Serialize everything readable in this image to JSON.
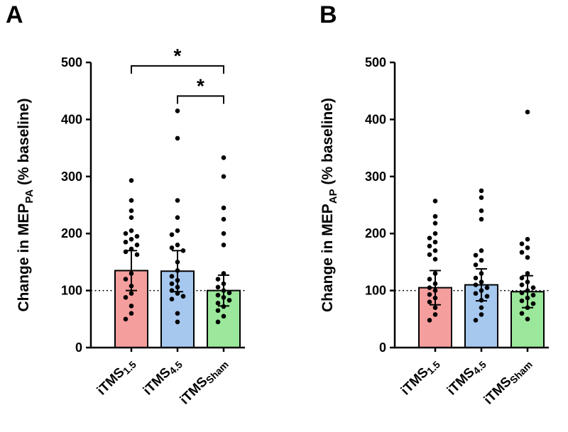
{
  "panels": {
    "a_label": "A",
    "b_label": "B"
  },
  "chart_data": [
    {
      "type": "bar",
      "panel_label": "A",
      "title": "",
      "ylabel_prefix": "Change in MEP",
      "ylabel_sub": "PA",
      "ylabel_suffix": " (% baseline)",
      "ylim": [
        0,
        500
      ],
      "yticks": [
        0,
        100,
        200,
        300,
        400,
        500
      ],
      "reference_line": 100,
      "grid": false,
      "legend": "none",
      "categories": [
        {
          "prefix": "iTMS",
          "sub": "1.5"
        },
        {
          "prefix": "iTMS",
          "sub": "4.5"
        },
        {
          "prefix": "iTMS",
          "sub": "Sham"
        }
      ],
      "bars": [
        {
          "name": "iTMS1.5",
          "mean": 135,
          "sem": 35,
          "color": "#F59E9E",
          "points": [
            293,
            258,
            240,
            228,
            205,
            200,
            195,
            190,
            185,
            180,
            173,
            168,
            163,
            130,
            120,
            108,
            95,
            88,
            73,
            60,
            50
          ]
        },
        {
          "name": "iTMS4.5",
          "mean": 134,
          "sem": 36,
          "color": "#A6C8EF",
          "points": [
            415,
            367,
            258,
            228,
            205,
            198,
            180,
            175,
            170,
            150,
            135,
            125,
            118,
            112,
            106,
            100,
            95,
            90,
            85,
            60,
            45
          ]
        },
        {
          "name": "iTMSSham",
          "mean": 100,
          "sem": 27,
          "color": "#9BE79B",
          "points": [
            333,
            300,
            245,
            225,
            200,
            180,
            130,
            120,
            112,
            106,
            100,
            96,
            92,
            88,
            83,
            78,
            72,
            65,
            55,
            45
          ]
        }
      ],
      "significance": [
        {
          "groups": [
            0,
            2
          ],
          "label": "*",
          "y": 494
        },
        {
          "groups": [
            1,
            2
          ],
          "label": "*",
          "y": 441
        }
      ]
    },
    {
      "type": "bar",
      "panel_label": "B",
      "title": "",
      "ylabel_prefix": "Change in MEP",
      "ylabel_sub": "AP",
      "ylabel_suffix": " (% baseline)",
      "ylim": [
        0,
        500
      ],
      "yticks": [
        0,
        100,
        200,
        300,
        400,
        500
      ],
      "reference_line": 100,
      "grid": false,
      "legend": "none",
      "categories": [
        {
          "prefix": "iTMS",
          "sub": "1.5"
        },
        {
          "prefix": "iTMS",
          "sub": "4.5"
        },
        {
          "prefix": "iTMS",
          "sub": "Sham"
        }
      ],
      "bars": [
        {
          "name": "iTMS1.5",
          "mean": 105,
          "sem": 30,
          "color": "#F59E9E",
          "points": [
            257,
            230,
            218,
            200,
            192,
            185,
            178,
            170,
            163,
            155,
            130,
            120,
            112,
            105,
            100,
            93,
            87,
            80,
            70,
            58,
            48
          ]
        },
        {
          "name": "iTMS4.5",
          "mean": 110,
          "sem": 28,
          "color": "#A6C8EF",
          "points": [
            275,
            263,
            240,
            225,
            170,
            162,
            153,
            145,
            130,
            122,
            115,
            110,
            105,
            100,
            95,
            90,
            83,
            70,
            58,
            48
          ]
        },
        {
          "name": "iTMSSham",
          "mean": 98,
          "sem": 28,
          "color": "#9BE79B",
          "points": [
            413,
            190,
            182,
            175,
            167,
            158,
            130,
            122,
            115,
            110,
            105,
            100,
            96,
            92,
            87,
            82,
            77,
            70,
            60,
            50
          ]
        }
      ],
      "significance": []
    }
  ]
}
